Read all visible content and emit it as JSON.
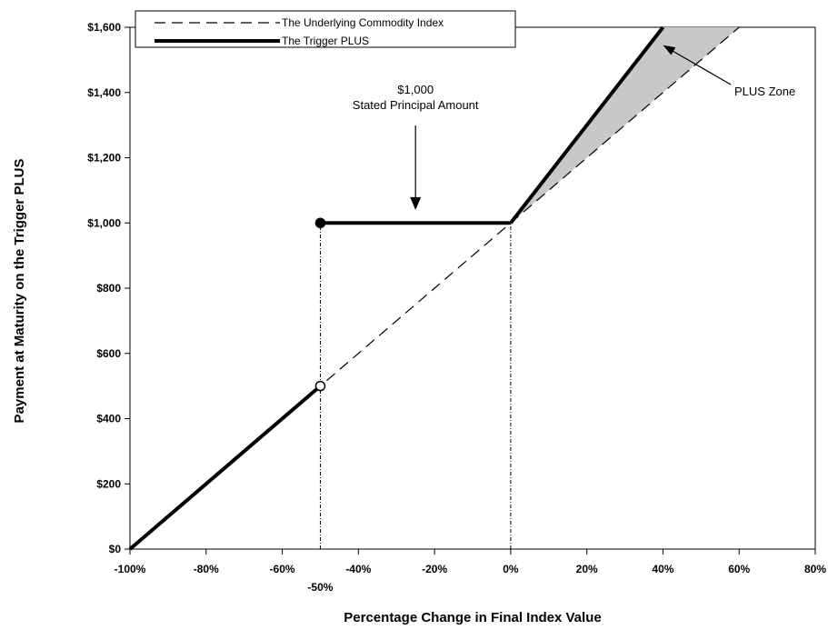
{
  "chart_data": {
    "type": "line",
    "xlabel": "Percentage Change in Final Index Value",
    "ylabel": "Payment at Maturity on the Trigger PLUS",
    "xlim": [
      -100,
      80
    ],
    "ylim": [
      0,
      1600
    ],
    "x_ticks": [
      "-100%",
      "-80%",
      "-60%",
      "-40%",
      "-20%",
      "0%",
      "20%",
      "40%",
      "60%",
      "80%"
    ],
    "x_tick_values": [
      -100,
      -80,
      -60,
      -40,
      -20,
      0,
      20,
      40,
      60,
      80
    ],
    "extra_x_tick": {
      "label": "-50%",
      "value": -50
    },
    "y_ticks": [
      "$0",
      "$200",
      "$400",
      "$600",
      "$800",
      "$1,000",
      "$1,200",
      "$1,400",
      "$1,600"
    ],
    "y_tick_values": [
      0,
      200,
      400,
      600,
      800,
      1000,
      1200,
      1400,
      1600
    ],
    "series": [
      {
        "name": "The Underlying Commodity Index",
        "style": "dashed",
        "color": "#000000",
        "points": [
          [
            -100,
            0
          ],
          [
            60,
            1600
          ]
        ]
      },
      {
        "name": "The Trigger PLUS",
        "style": "solid-thick",
        "color": "#000000",
        "segments": [
          [
            [
              -100,
              0
            ],
            [
              -50,
              500
            ]
          ],
          [
            [
              -50,
              1000
            ],
            [
              0,
              1000
            ]
          ],
          [
            [
              0,
              1000
            ],
            [
              40,
              1600
            ]
          ]
        ],
        "markers": [
          {
            "x": -50,
            "y": 1000,
            "fill": "filled"
          },
          {
            "x": -50,
            "y": 500,
            "fill": "open"
          }
        ]
      }
    ],
    "shaded_region": {
      "label": "PLUS Zone",
      "color": "#c8c8c8",
      "points": [
        [
          0,
          1000
        ],
        [
          40,
          1600
        ],
        [
          60,
          1600
        ]
      ]
    },
    "reference_lines": [
      {
        "x": -50,
        "y_from": 0,
        "y_to": 1000,
        "style": "dash-dot"
      },
      {
        "x": 0,
        "y_from": 0,
        "y_to": 1000,
        "style": "dash-dot"
      }
    ],
    "annotations": [
      {
        "lines": [
          "$1,000",
          "Stated Principal Amount"
        ],
        "arrow_to": {
          "x": -25,
          "y": 1040
        }
      },
      {
        "lines": [
          "PLUS Zone"
        ],
        "arrow_to": {
          "x": 40,
          "y": 1545
        }
      }
    ],
    "legend_position": "top-left"
  }
}
